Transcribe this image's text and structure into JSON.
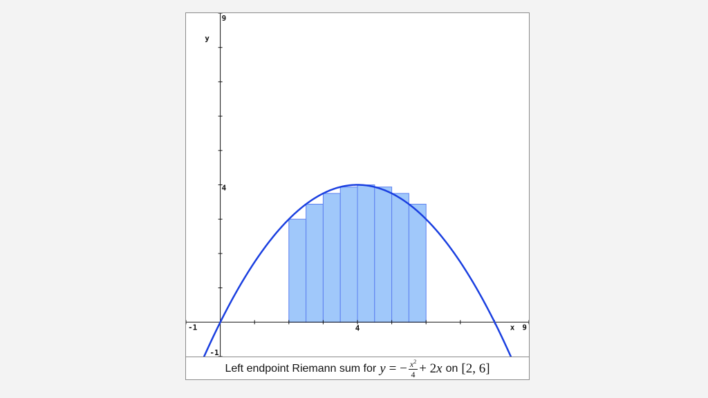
{
  "chart_data": {
    "type": "bar",
    "function": "y = -x^2/4 + 2x",
    "interval": [
      2,
      6
    ],
    "method": "left endpoint",
    "xlim": [
      -1,
      9
    ],
    "ylim": [
      -1,
      9
    ],
    "xlabel": "x",
    "ylabel": "y",
    "x_ticks": [
      -1,
      4,
      9
    ],
    "y_ticks": [
      -1,
      4,
      9
    ],
    "rectangles": [
      {
        "x0": 2.0,
        "x1": 2.5,
        "height": 3.0
      },
      {
        "x0": 2.5,
        "x1": 3.0,
        "height": 3.4375
      },
      {
        "x0": 3.0,
        "x1": 3.5,
        "height": 3.75
      },
      {
        "x0": 3.5,
        "x1": 4.0,
        "height": 3.9375
      },
      {
        "x0": 4.0,
        "x1": 4.5,
        "height": 4.0
      },
      {
        "x0": 4.5,
        "x1": 5.0,
        "height": 3.9375
      },
      {
        "x0": 5.0,
        "x1": 5.5,
        "height": 3.75
      },
      {
        "x0": 5.5,
        "x1": 6.0,
        "height": 3.4375
      }
    ],
    "colors": {
      "curve": "#1a3fe0",
      "bar_fill": "#a0c8fa",
      "bar_stroke": "#5b7ff0",
      "axis": "#111111"
    }
  },
  "caption": {
    "prefix": "Left endpoint Riemann sum for",
    "y_var": "y",
    "equals_minus": "= −",
    "frac_num_var": "x",
    "frac_num_exp": "2",
    "frac_den": "4",
    "plus_term": "+ 2",
    "x_var": "x",
    "on": "on",
    "interval_text": "[2, 6]"
  }
}
